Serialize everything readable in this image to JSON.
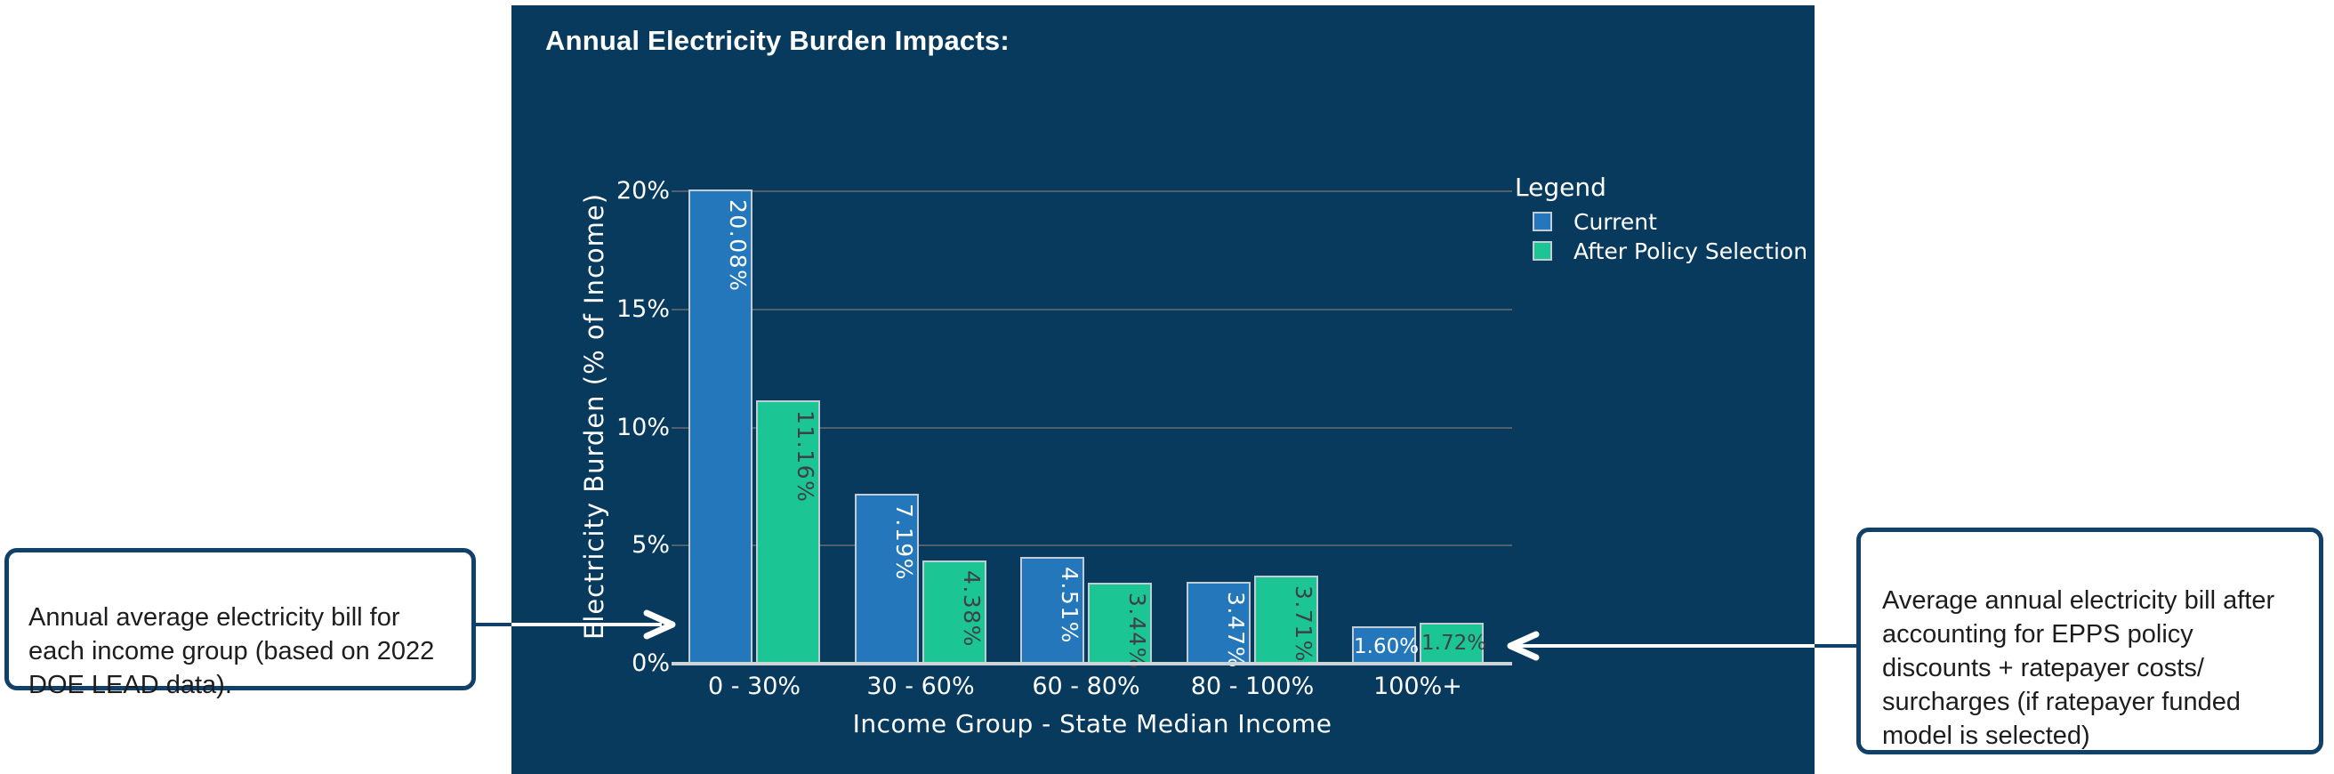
{
  "title": "Annual Electricity Burden Impacts:",
  "callouts": {
    "left": {
      "text": "Annual average electricity bill for\neach income group (based on 2022\nDOE LEAD data)."
    },
    "right": {
      "text": "Average annual electricity bill after\naccounting for EPPS policy\ndiscounts + ratepayer costs/\nsurcharges (if ratepayer funded\nmodel is selected)"
    }
  },
  "legend": {
    "title": "Legend",
    "items": [
      {
        "label": "Current",
        "color": "#2377ba"
      },
      {
        "label": "After Policy Selection",
        "color": "#1cc694"
      }
    ]
  },
  "chart_data": {
    "type": "bar",
    "title": "Annual Electricity Burden Impacts:",
    "categories": [
      "0 - 30%",
      "30 - 60%",
      "60 - 80%",
      "80 - 100%",
      "100%+"
    ],
    "series": [
      {
        "name": "Current",
        "color": "#2377ba",
        "values": [
          20.08,
          7.19,
          4.51,
          3.47,
          1.6
        ]
      },
      {
        "name": "After Policy Selection",
        "color": "#1cc694",
        "values": [
          11.16,
          4.38,
          3.44,
          3.71,
          1.72
        ]
      }
    ],
    "value_label_format": "0.00%",
    "xlabel": "Income Group - State Median Income",
    "ylabel": "Electricity Burden (% of Income)",
    "yticks": [
      0,
      5,
      10,
      15,
      20
    ],
    "ytick_labels": [
      "0%",
      "5%",
      "10%",
      "15%",
      "20%"
    ],
    "ylim": [
      0,
      20.5
    ],
    "grid": "horizontal",
    "legend_position": "right"
  },
  "colors": {
    "panel_background": "#083a5e",
    "gridline": "#51606c",
    "axis_line": "#ccd3d9",
    "chart_text": "#ffffff",
    "bar_label_on_blue": "#ffffff",
    "bar_label_on_green": "#3f3f46",
    "callout_border": "#11406b",
    "callout_text": "#1d1d1d"
  }
}
